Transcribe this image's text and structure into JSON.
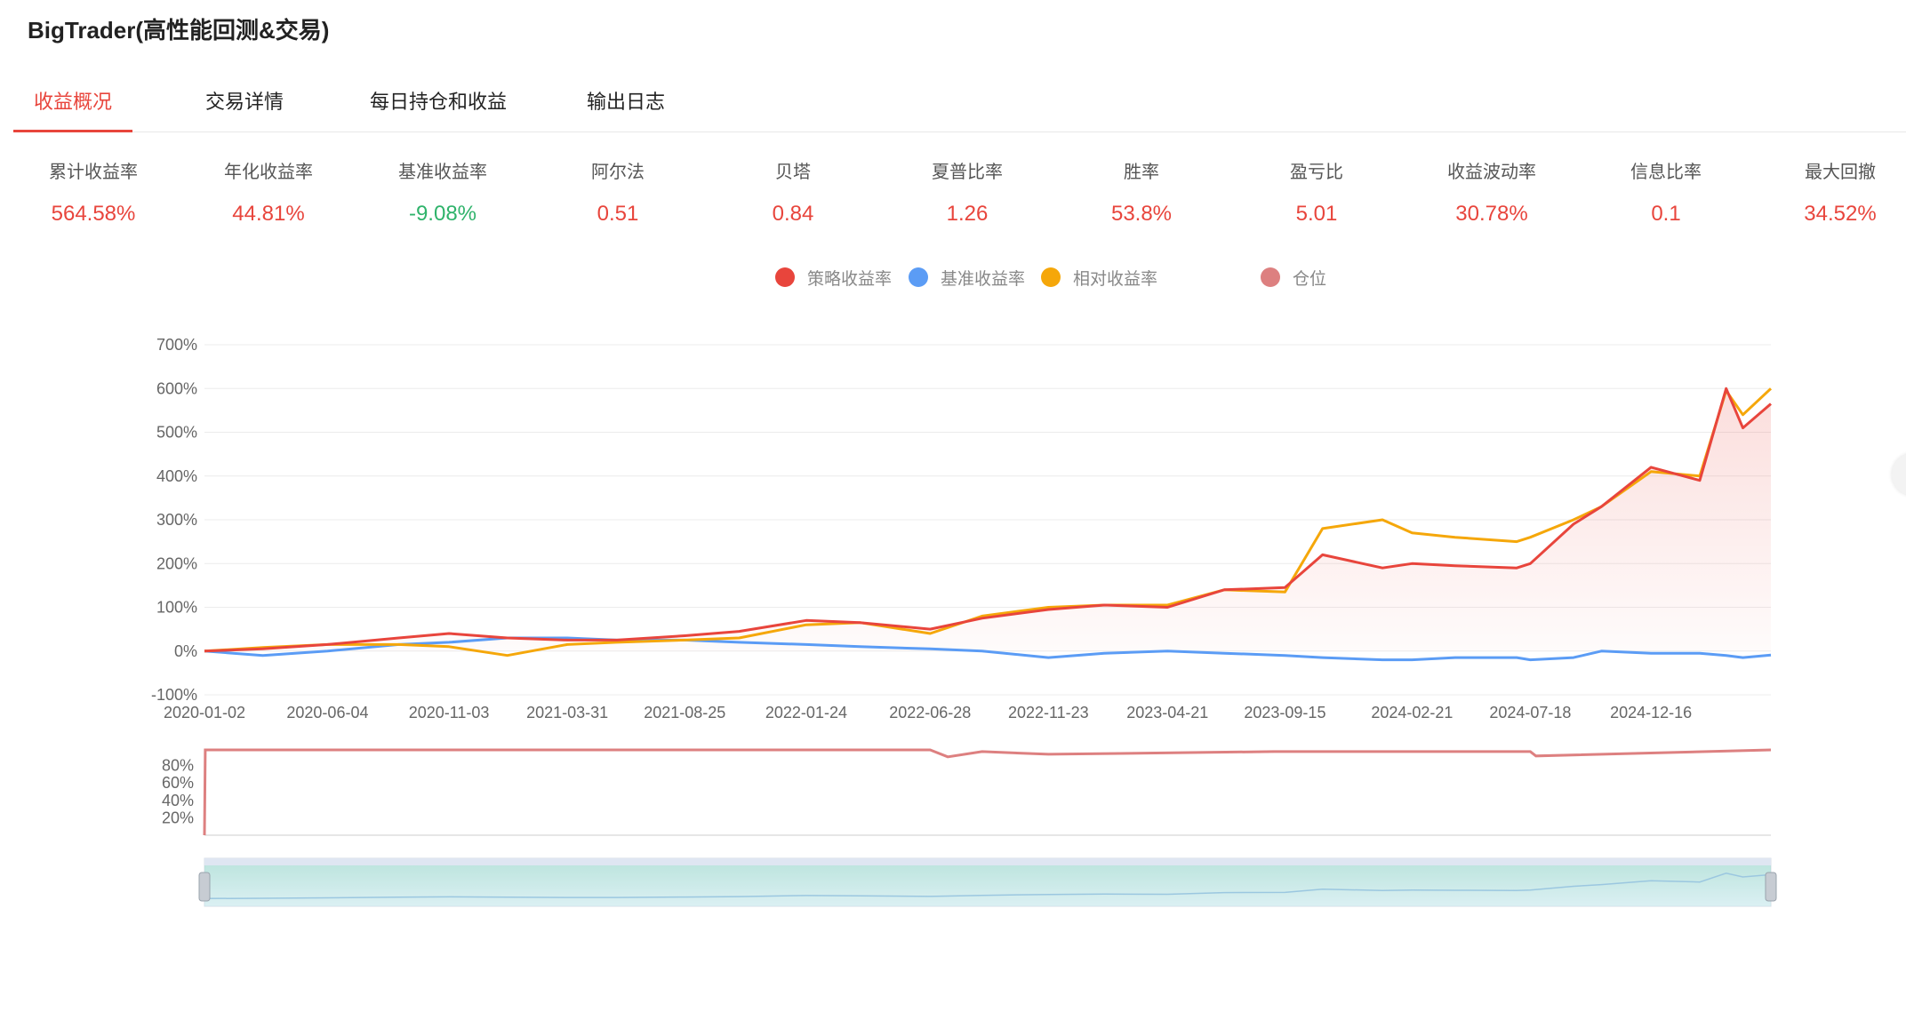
{
  "app": {
    "title": "BigTrader(高性能回测&交易)"
  },
  "tabs": [
    {
      "label": "收益概况",
      "active": true
    },
    {
      "label": "交易详情",
      "active": false
    },
    {
      "label": "每日持仓和收益",
      "active": false
    },
    {
      "label": "输出日志",
      "active": false
    }
  ],
  "metrics": [
    {
      "label": "累计收益率",
      "value": "564.58%",
      "trend": "up"
    },
    {
      "label": "年化收益率",
      "value": "44.81%",
      "trend": "up"
    },
    {
      "label": "基准收益率",
      "value": "-9.08%",
      "trend": "down"
    },
    {
      "label": "阿尔法",
      "value": "0.51",
      "trend": "up"
    },
    {
      "label": "贝塔",
      "value": "0.84",
      "trend": "up"
    },
    {
      "label": "夏普比率",
      "value": "1.26",
      "trend": "up"
    },
    {
      "label": "胜率",
      "value": "53.8%",
      "trend": "up"
    },
    {
      "label": "盈亏比",
      "value": "5.01",
      "trend": "up"
    },
    {
      "label": "收益波动率",
      "value": "30.78%",
      "trend": "up"
    },
    {
      "label": "信息比率",
      "value": "0.1",
      "trend": "up"
    },
    {
      "label": "最大回撤",
      "value": "34.52%",
      "trend": "up"
    }
  ],
  "legend": [
    {
      "label": "策略收益率",
      "color": "#e8453c"
    },
    {
      "label": "基准收益率",
      "color": "#5b9cf5"
    },
    {
      "label": "相对收益率",
      "color": "#f5a70a"
    },
    {
      "label": "仓位",
      "color": "#dd8080"
    }
  ],
  "chart_data": [
    {
      "type": "line",
      "x_ticks": [
        "2020-01-02",
        "2020-06-04",
        "2020-11-03",
        "2021-03-31",
        "2021-08-25",
        "2022-01-24",
        "2022-06-28",
        "2022-11-23",
        "2023-04-21",
        "2023-09-15",
        "2024-02-21",
        "2024-07-18",
        "2024-12-16"
      ],
      "y_ticks": [
        "700%",
        "600%",
        "500%",
        "400%",
        "300%",
        "200%",
        "100%",
        "0%",
        "-100%"
      ],
      "ylim": [
        -100,
        700
      ],
      "x": [
        "2020-01-02",
        "2020-03-15",
        "2020-06-04",
        "2020-09-01",
        "2020-11-03",
        "2021-01-15",
        "2021-03-31",
        "2021-06-01",
        "2021-08-25",
        "2021-11-01",
        "2022-01-24",
        "2022-04-01",
        "2022-06-28",
        "2022-09-01",
        "2022-11-23",
        "2023-02-01",
        "2023-04-21",
        "2023-07-01",
        "2023-09-15",
        "2023-11-01",
        "2024-01-15",
        "2024-02-21",
        "2024-04-15",
        "2024-07-01",
        "2024-07-18",
        "2024-09-10",
        "2024-10-15",
        "2024-12-16",
        "2025-02-15",
        "2025-03-20",
        "2025-04-10",
        "2025-05-15"
      ],
      "series": [
        {
          "name": "策略收益率",
          "color": "#e8453c",
          "values": [
            0,
            5,
            15,
            30,
            40,
            30,
            25,
            25,
            35,
            45,
            70,
            65,
            50,
            75,
            95,
            105,
            100,
            140,
            145,
            220,
            190,
            200,
            195,
            190,
            200,
            290,
            330,
            420,
            390,
            600,
            510,
            565
          ]
        },
        {
          "name": "基准收益率",
          "color": "#5b9cf5",
          "values": [
            0,
            -10,
            0,
            15,
            20,
            30,
            30,
            25,
            25,
            20,
            15,
            10,
            5,
            0,
            -15,
            -5,
            0,
            -5,
            -10,
            -15,
            -20,
            -20,
            -15,
            -15,
            -20,
            -15,
            0,
            -5,
            -5,
            -10,
            -15,
            -9
          ]
        },
        {
          "name": "相对收益率",
          "color": "#f5a70a",
          "values": [
            0,
            8,
            15,
            15,
            10,
            -10,
            15,
            20,
            25,
            30,
            60,
            65,
            40,
            80,
            100,
            105,
            105,
            140,
            135,
            280,
            300,
            270,
            260,
            250,
            260,
            300,
            330,
            410,
            400,
            595,
            540,
            600
          ]
        }
      ]
    },
    {
      "type": "line",
      "series": [
        {
          "name": "仓位",
          "color": "#dd8080",
          "x": [
            "2020-01-02",
            "2020-01-03",
            "2022-06-28",
            "2022-07-20",
            "2022-09-01",
            "2022-11-23",
            "2023-09-01",
            "2024-07-18",
            "2024-07-25",
            "2025-05-15"
          ],
          "values": [
            0,
            98,
            98,
            90,
            96,
            93,
            96,
            96,
            91,
            98
          ]
        }
      ],
      "y_ticks": [
        "80%",
        "60%",
        "40%",
        "20%"
      ],
      "ylim": [
        0,
        100
      ]
    }
  ]
}
